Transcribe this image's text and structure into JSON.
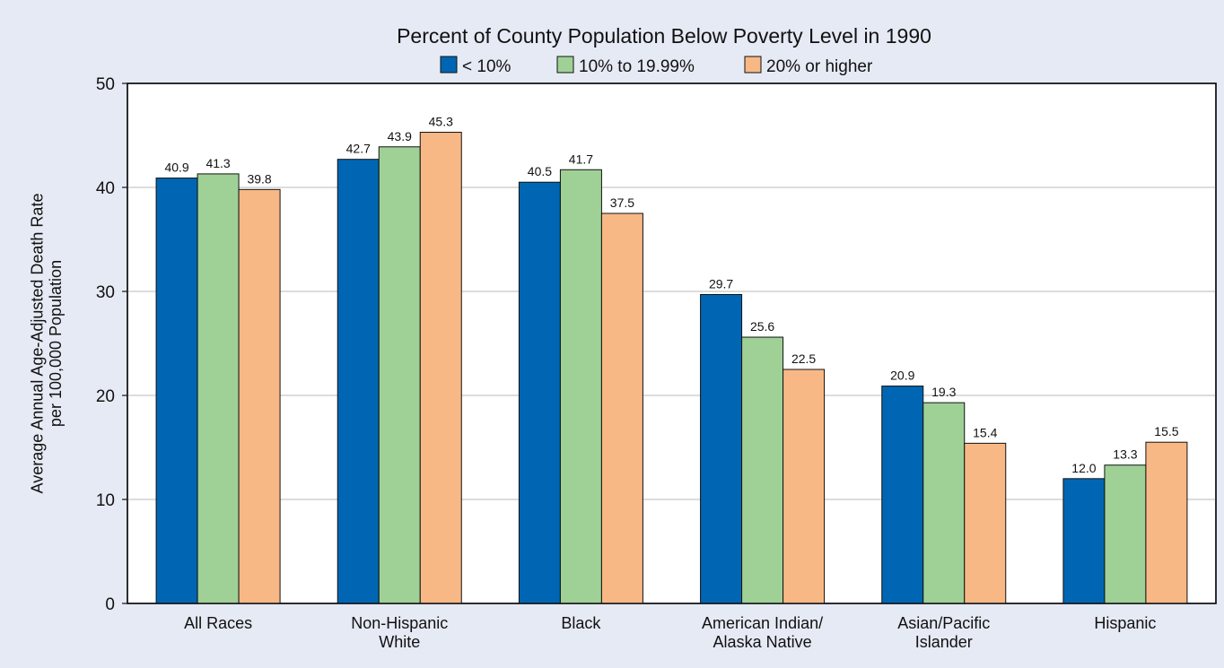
{
  "chart_data": {
    "type": "bar",
    "title": "Percent of County Population Below Poverty Level in 1990",
    "ylabel_lines": [
      "Average Annual Age-Adjusted Death Rate",
      "per 100,000 Population"
    ],
    "xlabel": "",
    "ylim": [
      0,
      50
    ],
    "yticks": [
      0,
      10,
      20,
      30,
      40,
      50
    ],
    "grid": true,
    "legend_placement": "top-center",
    "categories": [
      [
        "All Races"
      ],
      [
        "Non-Hispanic",
        "White"
      ],
      [
        "Black"
      ],
      [
        "American Indian/",
        "Alaska Native"
      ],
      [
        "Asian/Pacific",
        "Islander"
      ],
      [
        "Hispanic"
      ]
    ],
    "series": [
      {
        "name": "< 10%",
        "color": "#0066b3",
        "values": [
          40.9,
          42.7,
          40.5,
          29.7,
          20.9,
          12.0
        ],
        "labels": [
          "40.9",
          "42.7",
          "40.5",
          "29.7",
          "20.9",
          "12.0"
        ]
      },
      {
        "name": "10% to 19.99%",
        "color": "#9fd196",
        "values": [
          41.3,
          43.9,
          41.7,
          25.6,
          19.3,
          13.3
        ],
        "labels": [
          "41.3",
          "43.9",
          "41.7",
          "25.6",
          "19.3",
          "13.3"
        ]
      },
      {
        "name": "20% or higher",
        "color": "#f8b886",
        "values": [
          39.8,
          45.3,
          37.5,
          22.5,
          15.4,
          15.5
        ],
        "labels": [
          "39.8",
          "45.3",
          "37.5",
          "22.5",
          "15.4",
          "15.5"
        ]
      }
    ]
  }
}
